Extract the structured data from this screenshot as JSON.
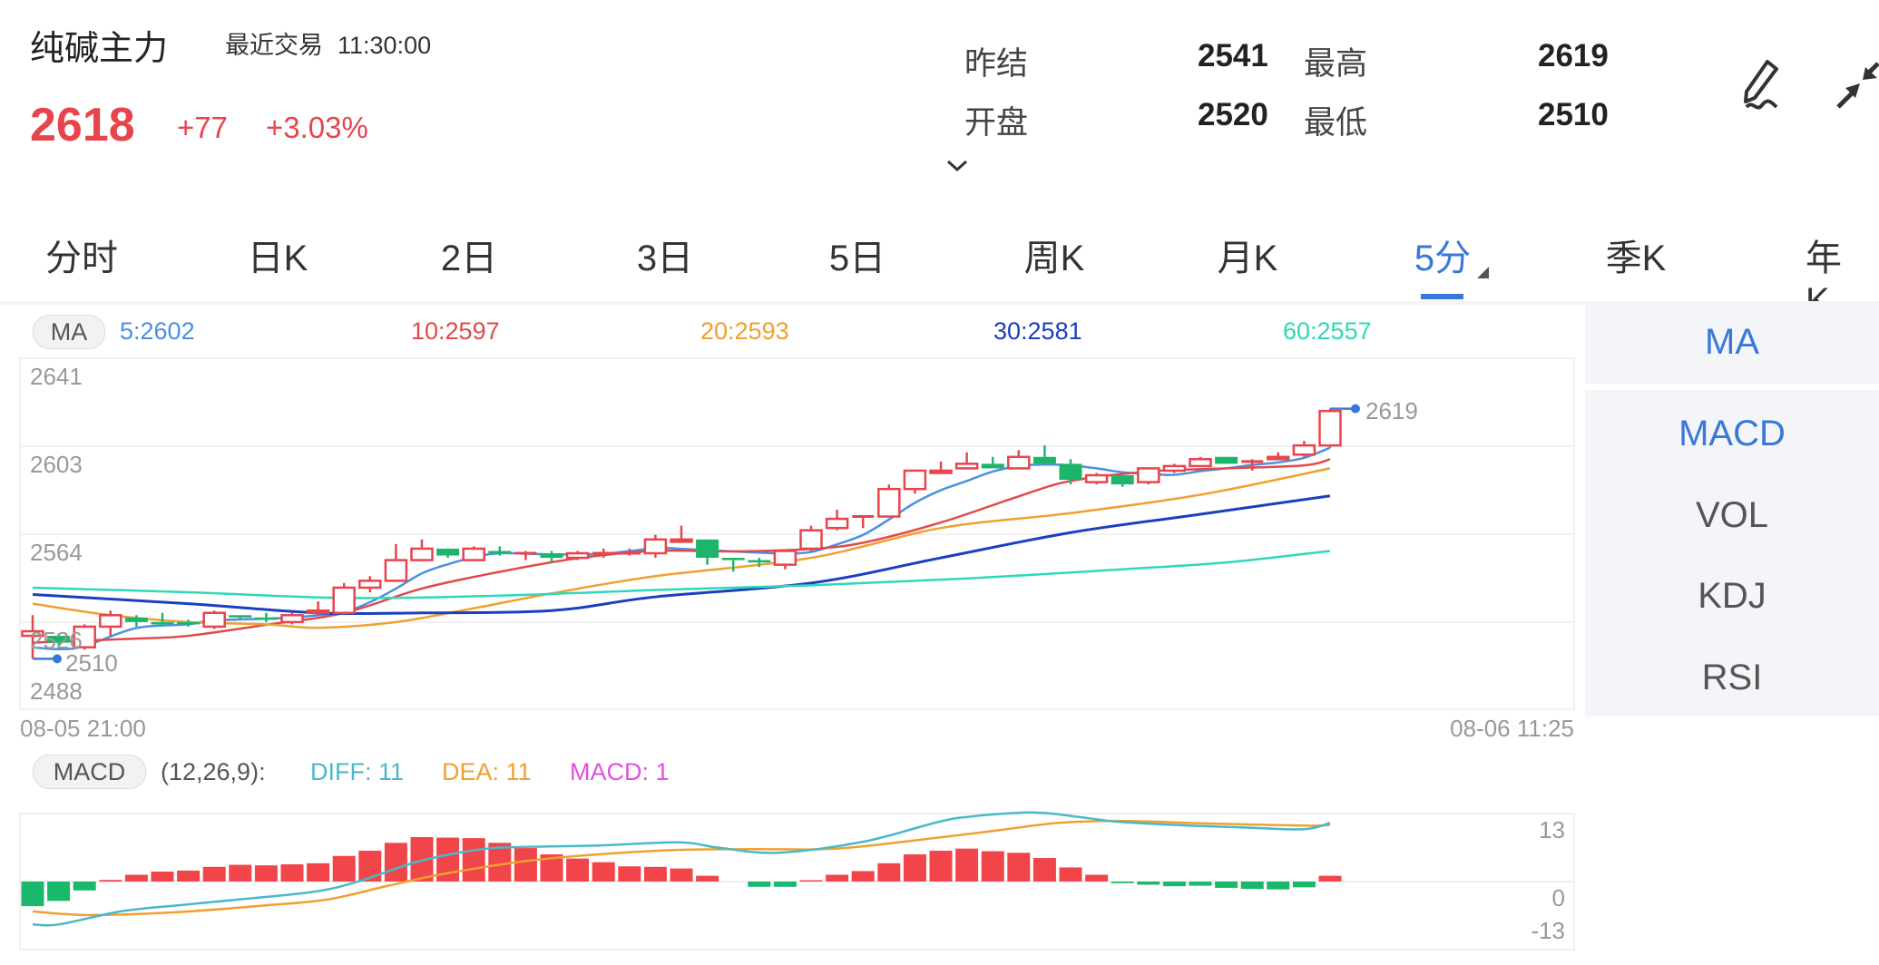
{
  "header": {
    "title": "纯碱主力",
    "last_trade_label": "最近交易",
    "last_trade_time": "11:30:00",
    "price": "2618",
    "change": "+77",
    "change_pct": "+3.03%",
    "stats": [
      {
        "label": "昨结",
        "value": "2541"
      },
      {
        "label": "最高",
        "value": "2619"
      },
      {
        "label": "开盘",
        "value": "2520"
      },
      {
        "label": "最低",
        "value": "2510"
      }
    ],
    "icons": [
      "chevron-down-icon",
      "pen-draw-icon",
      "collapse-arrows-icon"
    ]
  },
  "tabs": [
    {
      "label": "分时"
    },
    {
      "label": "日K"
    },
    {
      "label": "2日"
    },
    {
      "label": "3日"
    },
    {
      "label": "5日"
    },
    {
      "label": "周K"
    },
    {
      "label": "月K"
    },
    {
      "label": "5分",
      "active": true
    },
    {
      "label": "季K"
    },
    {
      "label": "年K"
    }
  ],
  "ma_legend": {
    "pill": "MA",
    "items": [
      {
        "text": "5:2602",
        "color": "#4a90e2"
      },
      {
        "text": "10:2597",
        "color": "#e04a4a"
      },
      {
        "text": "20:2593",
        "color": "#f0a030"
      },
      {
        "text": "30:2581",
        "color": "#1a3fc0"
      },
      {
        "text": "60:2557",
        "color": "#2ed8b8"
      }
    ]
  },
  "side_panel": [
    {
      "label": "MA",
      "active": true
    },
    {
      "label": "MACD",
      "active": true
    },
    {
      "label": "VOL"
    },
    {
      "label": "KDJ"
    },
    {
      "label": "RSI"
    }
  ],
  "macd_legend": {
    "pill": "MACD",
    "params": "(12,26,9):",
    "diff": "DIFF: 11",
    "dea": "DEA: 11",
    "macd": "MACD: 1",
    "colors": {
      "diff": "#4ab8c8",
      "dea": "#f0a030",
      "macd": "#e050e0"
    }
  },
  "chart_data": [
    {
      "type": "candlestick",
      "y_ticks": [
        "2641",
        "2603",
        "2564",
        "2526",
        "2488"
      ],
      "ylim": [
        2488,
        2641
      ],
      "x_start_label": "08-05 21:00",
      "x_end_label": "08-06 11:25",
      "high_marker": "2619",
      "low_marker": "2510",
      "colors": {
        "up": "#e8444c",
        "down": "#1db46c"
      },
      "candles_ohlc": [
        [
          2520,
          2529,
          2510,
          2522
        ],
        [
          2520,
          2521,
          2516,
          2517
        ],
        [
          2515,
          2525,
          2514,
          2524
        ],
        [
          2524,
          2531,
          2520,
          2529
        ],
        [
          2528,
          2529,
          2524,
          2526
        ],
        [
          2526,
          2530,
          2524,
          2525
        ],
        [
          2526,
          2527,
          2524,
          2525
        ],
        [
          2524,
          2531,
          2523,
          2530
        ],
        [
          2529,
          2529,
          2527,
          2528
        ],
        [
          2528,
          2530,
          2526,
          2527
        ],
        [
          2526,
          2530,
          2525,
          2529
        ],
        [
          2530,
          2535,
          2529,
          2531
        ],
        [
          2530,
          2543,
          2529,
          2541
        ],
        [
          2541,
          2546,
          2539,
          2544
        ],
        [
          2544,
          2560,
          2544,
          2553
        ],
        [
          2553,
          2562,
          2553,
          2558
        ],
        [
          2558,
          2558,
          2554,
          2555
        ],
        [
          2553,
          2559,
          2553,
          2558
        ],
        [
          2557,
          2559,
          2555,
          2556
        ],
        [
          2556,
          2557,
          2553,
          2556
        ],
        [
          2556,
          2557,
          2552,
          2554
        ],
        [
          2554,
          2557,
          2553,
          2556
        ],
        [
          2556,
          2558,
          2554,
          2556
        ],
        [
          2556,
          2558,
          2555,
          2556
        ],
        [
          2556,
          2564,
          2554,
          2562
        ],
        [
          2561,
          2568,
          2561,
          2562
        ],
        [
          2562,
          2562,
          2551,
          2554
        ],
        [
          2554,
          2554,
          2548,
          2553
        ],
        [
          2553,
          2554,
          2550,
          2552
        ],
        [
          2551,
          2557,
          2549,
          2557
        ],
        [
          2558,
          2568,
          2557,
          2566
        ],
        [
          2567,
          2575,
          2566,
          2571
        ],
        [
          2572,
          2572,
          2567,
          2572
        ],
        [
          2572,
          2586,
          2572,
          2584
        ],
        [
          2584,
          2592,
          2582,
          2592
        ],
        [
          2591,
          2596,
          2591,
          2592
        ],
        [
          2593,
          2600,
          2593,
          2595
        ],
        [
          2595,
          2598,
          2593,
          2593
        ],
        [
          2593,
          2601,
          2593,
          2598
        ],
        [
          2598,
          2603,
          2595,
          2595
        ],
        [
          2595,
          2597,
          2586,
          2588
        ],
        [
          2587,
          2591,
          2586,
          2590
        ],
        [
          2590,
          2590,
          2585,
          2586
        ],
        [
          2587,
          2593,
          2586,
          2593
        ],
        [
          2592,
          2595,
          2591,
          2594
        ],
        [
          2594,
          2598,
          2594,
          2597
        ],
        [
          2598,
          2598,
          2595,
          2595
        ],
        [
          2596,
          2597,
          2592,
          2596
        ],
        [
          2597,
          2600,
          2597,
          2598
        ],
        [
          2599,
          2605,
          2598,
          2603
        ],
        [
          2603,
          2619,
          2602,
          2618
        ]
      ],
      "ma_series": [
        {
          "name": "MA5",
          "color": "#4a90e2",
          "points": [
            [
              0,
              2515
            ],
            [
              1,
              2514.2
            ],
            [
              2,
              2515.5
            ],
            [
              4,
              2523.4
            ],
            [
              6,
              2525
            ],
            [
              7,
              2526.7
            ],
            [
              10,
              2528
            ],
            [
              12,
              2530.7
            ],
            [
              13,
              2534.7
            ],
            [
              14,
              2540.6
            ],
            [
              15,
              2547.2
            ],
            [
              16,
              2551.2
            ],
            [
              17,
              2554.2
            ],
            [
              18,
              2556
            ],
            [
              20,
              2555.5
            ],
            [
              22,
              2555.8
            ],
            [
              24,
              2558.2
            ],
            [
              25,
              2557.9
            ],
            [
              27,
              2556.8
            ],
            [
              29,
              2555.9
            ],
            [
              30,
              2556.6
            ],
            [
              31,
              2559.9
            ],
            [
              32,
              2564
            ],
            [
              33,
              2570.7
            ],
            [
              34,
              2578
            ],
            [
              35,
              2583.5
            ],
            [
              36,
              2587.5
            ],
            [
              37,
              2591.6
            ],
            [
              38,
              2594
            ],
            [
              39,
              2594.7
            ],
            [
              40,
              2594.3
            ],
            [
              41,
              2593
            ],
            [
              42,
              2591.3
            ],
            [
              43,
              2590.6
            ],
            [
              44,
              2590.2
            ],
            [
              45,
              2591.8
            ],
            [
              46,
              2593
            ],
            [
              47,
              2594.5
            ],
            [
              48,
              2595.6
            ],
            [
              49,
              2597.6
            ],
            [
              50,
              2602
            ]
          ]
        },
        {
          "name": "MA10",
          "color": "#e04a4a",
          "points": [
            [
              0,
              2517
            ],
            [
              1,
              2517.5
            ],
            [
              4,
              2518.8
            ],
            [
              6,
              2520
            ],
            [
              9,
              2524.8
            ],
            [
              12,
              2530
            ],
            [
              15,
              2540.6
            ],
            [
              18,
              2547.9
            ],
            [
              21,
              2553.8
            ],
            [
              24,
              2557
            ],
            [
              27,
              2556.8
            ],
            [
              30,
              2557.9
            ],
            [
              32,
              2560.6
            ],
            [
              35,
              2569.4
            ],
            [
              38,
              2580.8
            ],
            [
              40,
              2587.5
            ],
            [
              43,
              2591.6
            ],
            [
              46,
              2593
            ],
            [
              49,
              2594.3
            ],
            [
              50,
              2597
            ]
          ]
        },
        {
          "name": "MA20",
          "color": "#f0a030",
          "points": [
            [
              0,
              2534
            ],
            [
              3,
              2529
            ],
            [
              6,
              2526
            ],
            [
              9,
              2525
            ],
            [
              11,
              2523.5
            ],
            [
              14,
              2526
            ],
            [
              17,
              2532
            ],
            [
              20,
              2538.5
            ],
            [
              24,
              2546
            ],
            [
              30,
              2554
            ],
            [
              35,
              2567
            ],
            [
              40,
              2573.5
            ],
            [
              45,
              2581.5
            ],
            [
              50,
              2593
            ]
          ]
        },
        {
          "name": "MA30",
          "color": "#1a3fc0",
          "points": [
            [
              0,
              2538
            ],
            [
              6,
              2534
            ],
            [
              11,
              2530
            ],
            [
              15,
              2530
            ],
            [
              20,
              2531
            ],
            [
              24,
              2537
            ],
            [
              30,
              2543
            ],
            [
              35,
              2554
            ],
            [
              40,
              2565
            ],
            [
              45,
              2573
            ],
            [
              50,
              2581
            ]
          ]
        },
        {
          "name": "MA60",
          "color": "#2ed8b8",
          "points": [
            [
              0,
              2541
            ],
            [
              6,
              2539
            ],
            [
              12,
              2536.5
            ],
            [
              18,
              2537.5
            ],
            [
              24,
              2540
            ],
            [
              30,
              2542
            ],
            [
              36,
              2545
            ],
            [
              42,
              2549
            ],
            [
              46,
              2552
            ],
            [
              50,
              2557
            ]
          ]
        }
      ]
    },
    {
      "type": "bar+line",
      "y_ticks": [
        "13",
        "0",
        "-13"
      ],
      "ylim": [
        -13,
        13
      ],
      "macd_hist": [
        -4.7,
        -3.7,
        -1.7,
        0.3,
        1.3,
        1.9,
        2.1,
        2.8,
        3.2,
        3.1,
        3.3,
        3.5,
        4.9,
        5.9,
        7.4,
        8.5,
        8.4,
        8.3,
        7.4,
        6.4,
        5.2,
        4.4,
        3.7,
        2.9,
        2.8,
        2.5,
        1.1,
        0,
        -1.0,
        -1.0,
        0.1,
        1.3,
        2.0,
        3.5,
        5.2,
        5.9,
        6.3,
        5.8,
        5.5,
        4.5,
        2.7,
        1.3,
        -0.3,
        -0.6,
        -0.9,
        -0.8,
        -1.2,
        -1.4,
        -1.5,
        -1.1,
        1.1
      ],
      "diff_points": [
        [
          0,
          -8.2
        ],
        [
          1,
          -8.2
        ],
        [
          3.4,
          -5.7
        ],
        [
          5.7,
          -4.5
        ],
        [
          8,
          -3.4
        ],
        [
          10.9,
          -1.9
        ],
        [
          12.6,
          0.1
        ],
        [
          14.9,
          3.9
        ],
        [
          17.2,
          6.1
        ],
        [
          18.8,
          6.6
        ],
        [
          21.8,
          6.9
        ],
        [
          24.9,
          7.5
        ],
        [
          26.4,
          6.5
        ],
        [
          28.7,
          5.5
        ],
        [
          32,
          7.6
        ],
        [
          34.9,
          11.4
        ],
        [
          36.1,
          12.4
        ],
        [
          37.9,
          13.1
        ],
        [
          39,
          13.1
        ],
        [
          40.7,
          12.1
        ],
        [
          41.9,
          11.4
        ],
        [
          44.6,
          10.7
        ],
        [
          46.9,
          10.3
        ],
        [
          49,
          10
        ],
        [
          50,
          11.2
        ]
      ],
      "dea_points": [
        [
          0,
          -5.7
        ],
        [
          2.2,
          -6.4
        ],
        [
          5.7,
          -5.8
        ],
        [
          9.1,
          -4.5
        ],
        [
          11.4,
          -3.4
        ],
        [
          13.7,
          -0.8
        ],
        [
          16,
          1.6
        ],
        [
          19.5,
          4.2
        ],
        [
          24.1,
          5.9
        ],
        [
          27.6,
          6.2
        ],
        [
          31,
          6.3
        ],
        [
          34.9,
          8.4
        ],
        [
          37.2,
          9.8
        ],
        [
          39.5,
          11.2
        ],
        [
          41.9,
          11.6
        ],
        [
          45.3,
          11.1
        ],
        [
          49,
          10.7
        ],
        [
          50,
          10.8
        ]
      ]
    }
  ]
}
